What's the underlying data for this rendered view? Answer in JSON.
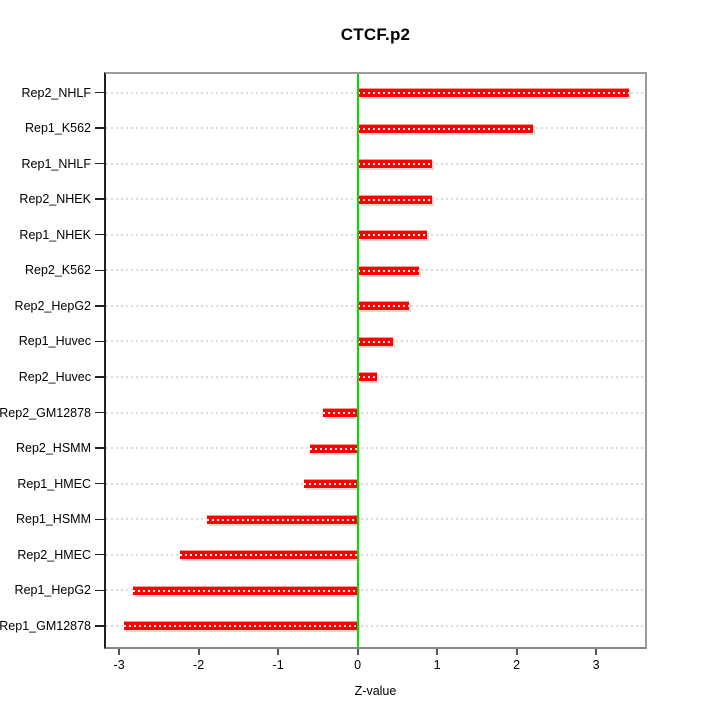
{
  "title": "CTCF.p2",
  "xlabel": "Z-value",
  "chart_data": {
    "type": "bar",
    "orientation": "horizontal",
    "title": "CTCF.p2",
    "xlabel": "Z-value",
    "ylabel": "",
    "categories": [
      "Rep2_NHLF",
      "Rep1_K562",
      "Rep1_NHLF",
      "Rep2_NHEK",
      "Rep1_NHEK",
      "Rep2_K562",
      "Rep2_HepG2",
      "Rep1_Huvec",
      "Rep2_Huvec",
      "Rep2_GM12878",
      "Rep2_HSMM",
      "Rep1_HMEC",
      "Rep1_HSMM",
      "Rep2_HMEC",
      "Rep1_HepG2",
      "Rep1_GM12878"
    ],
    "values": [
      3.41,
      2.21,
      0.94,
      0.93,
      0.87,
      0.77,
      0.65,
      0.44,
      0.25,
      -0.43,
      -0.6,
      -0.67,
      -1.9,
      -2.24,
      -2.83,
      -2.94
    ],
    "xlim": [
      -3.19,
      3.64
    ],
    "xticks": [
      -3,
      -2,
      -1,
      0,
      1,
      2,
      3
    ],
    "xtick_labels": [
      "-3",
      "-2",
      "-1",
      "0",
      "1",
      "2",
      "3"
    ],
    "grid": "dotted horizontal line per category, full plot width",
    "zero_line_at": 0,
    "legend": "none",
    "colors": {
      "bar": "#ff0000",
      "bar_shadow": "#d9d9d9",
      "zero_line": "#00e000",
      "gridline": "#dcdcdc",
      "box_border": "#9c9c9c",
      "axis_line": "#1f1f1f",
      "text": "#000000",
      "background": "#ffffff"
    }
  }
}
